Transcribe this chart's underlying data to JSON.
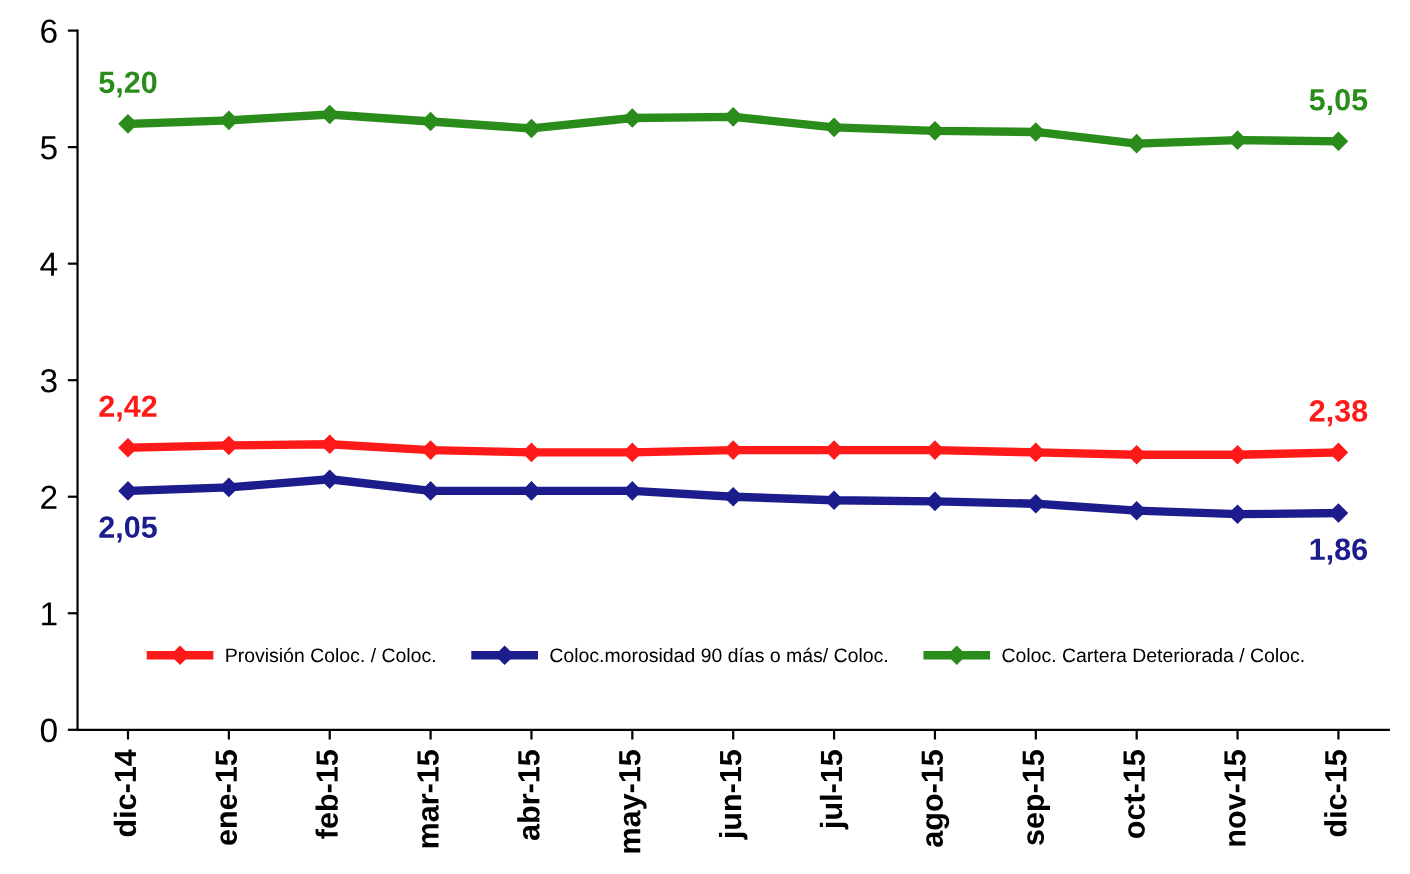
{
  "chart_data": {
    "type": "line",
    "categories": [
      "dic-14",
      "ene-15",
      "feb-15",
      "mar-15",
      "abr-15",
      "may-15",
      "jun-15",
      "jul-15",
      "ago-15",
      "sep-15",
      "oct-15",
      "nov-15",
      "dic-15"
    ],
    "series": [
      {
        "name": "Provisión Coloc. / Coloc.",
        "color": "#ff1a1a",
        "values": [
          2.42,
          2.44,
          2.45,
          2.4,
          2.38,
          2.38,
          2.4,
          2.4,
          2.4,
          2.38,
          2.36,
          2.36,
          2.38
        ],
        "value_labels": [
          "2,42",
          null,
          null,
          null,
          null,
          null,
          null,
          null,
          null,
          null,
          null,
          null,
          "2,38"
        ]
      },
      {
        "name": "Coloc.morosidad 90 días o más/ Coloc.",
        "color": "#1c1c8c",
        "values": [
          2.05,
          2.08,
          2.15,
          2.05,
          2.05,
          2.05,
          2.0,
          1.97,
          1.96,
          1.94,
          1.88,
          1.85,
          1.86
        ],
        "value_labels": [
          "2,05",
          null,
          null,
          null,
          null,
          null,
          null,
          null,
          null,
          null,
          null,
          null,
          "1,86"
        ]
      },
      {
        "name": "Coloc. Cartera Deteriorada / Coloc.",
        "color": "#2a8c1a",
        "values": [
          5.2,
          5.23,
          5.28,
          5.22,
          5.16,
          5.25,
          5.26,
          5.17,
          5.14,
          5.13,
          5.03,
          5.06,
          5.05
        ],
        "value_labels": [
          "5,20",
          null,
          null,
          null,
          null,
          null,
          null,
          null,
          null,
          null,
          null,
          null,
          "5,05"
        ]
      }
    ],
    "ylim": [
      0,
      6
    ],
    "yticks": [
      0,
      1,
      2,
      3,
      4,
      5,
      6
    ],
    "grid": false,
    "legend": "bottom",
    "marker": "diamond",
    "line_style": "solid"
  }
}
